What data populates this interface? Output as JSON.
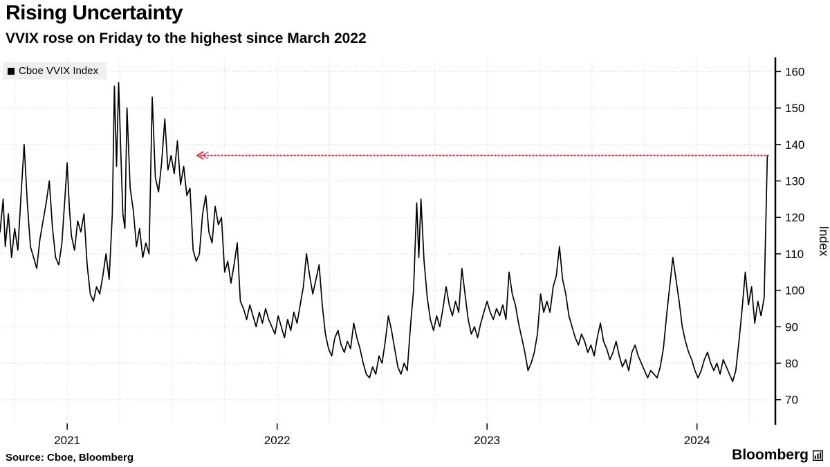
{
  "chart_data": {
    "type": "line",
    "title": "Rising Uncertainty",
    "subtitle": "VVIX rose on Friday to the highest since March 2022",
    "ylabel": "Index",
    "xlabel": "",
    "xlim": [
      2020.68,
      2024.37
    ],
    "ylim": [
      63.5,
      163.5
    ],
    "y_ticks": [
      70,
      80,
      90,
      100,
      110,
      120,
      130,
      140,
      150,
      160
    ],
    "x_ticks": [
      {
        "value": 2021,
        "label": "2021"
      },
      {
        "value": 2022,
        "label": "2022"
      },
      {
        "value": 2023,
        "label": "2023"
      },
      {
        "value": 2024,
        "label": "2024"
      }
    ],
    "grid": "dotted, horizontal every 10, vertical quarterly",
    "legend_position": "top-left",
    "annotation": {
      "type": "dotted-horizontal-arrow-line",
      "value": 137,
      "x_start": 2021.62,
      "x_end": 2024.34,
      "color": "#dd2e3f"
    },
    "series": [
      {
        "name": "Cboe VVIX Index",
        "color": "#000000",
        "points": [
          [
            2020.68,
            116
          ],
          [
            2020.695,
            125
          ],
          [
            2020.705,
            112
          ],
          [
            2020.72,
            121
          ],
          [
            2020.735,
            109
          ],
          [
            2020.75,
            117
          ],
          [
            2020.765,
            111
          ],
          [
            2020.78,
            126
          ],
          [
            2020.795,
            140
          ],
          [
            2020.81,
            124
          ],
          [
            2020.825,
            112
          ],
          [
            2020.84,
            109
          ],
          [
            2020.855,
            106
          ],
          [
            2020.87,
            114
          ],
          [
            2020.885,
            119
          ],
          [
            2020.9,
            124
          ],
          [
            2020.915,
            130
          ],
          [
            2020.93,
            117
          ],
          [
            2020.945,
            109
          ],
          [
            2020.96,
            107
          ],
          [
            2020.975,
            113
          ],
          [
            2020.99,
            126
          ],
          [
            2021.0,
            135
          ],
          [
            2021.01,
            123
          ],
          [
            2021.02,
            115
          ],
          [
            2021.035,
            111
          ],
          [
            2021.05,
            119
          ],
          [
            2021.065,
            116
          ],
          [
            2021.08,
            121
          ],
          [
            2021.095,
            107
          ],
          [
            2021.11,
            99
          ],
          [
            2021.125,
            97
          ],
          [
            2021.14,
            101
          ],
          [
            2021.155,
            99
          ],
          [
            2021.17,
            104
          ],
          [
            2021.185,
            110
          ],
          [
            2021.2,
            103
          ],
          [
            2021.215,
            121
          ],
          [
            2021.225,
            156
          ],
          [
            2021.235,
            134
          ],
          [
            2021.245,
            157
          ],
          [
            2021.255,
            139
          ],
          [
            2021.265,
            121
          ],
          [
            2021.275,
            117
          ],
          [
            2021.285,
            150
          ],
          [
            2021.3,
            128
          ],
          [
            2021.315,
            122
          ],
          [
            2021.33,
            112
          ],
          [
            2021.345,
            117
          ],
          [
            2021.36,
            109
          ],
          [
            2021.375,
            113
          ],
          [
            2021.39,
            110
          ],
          [
            2021.405,
            153
          ],
          [
            2021.42,
            131
          ],
          [
            2021.435,
            127
          ],
          [
            2021.45,
            135
          ],
          [
            2021.465,
            147
          ],
          [
            2021.48,
            133
          ],
          [
            2021.495,
            137
          ],
          [
            2021.51,
            132
          ],
          [
            2021.525,
            141
          ],
          [
            2021.54,
            129
          ],
          [
            2021.555,
            134
          ],
          [
            2021.57,
            126
          ],
          [
            2021.585,
            128
          ],
          [
            2021.6,
            111
          ],
          [
            2021.615,
            108
          ],
          [
            2021.63,
            110
          ],
          [
            2021.645,
            121
          ],
          [
            2021.66,
            126
          ],
          [
            2021.675,
            116
          ],
          [
            2021.69,
            113
          ],
          [
            2021.705,
            123
          ],
          [
            2021.72,
            118
          ],
          [
            2021.735,
            120
          ],
          [
            2021.75,
            105
          ],
          [
            2021.765,
            108
          ],
          [
            2021.78,
            102
          ],
          [
            2021.795,
            107
          ],
          [
            2021.81,
            113
          ],
          [
            2021.825,
            97
          ],
          [
            2021.84,
            95
          ],
          [
            2021.855,
            92
          ],
          [
            2021.87,
            96
          ],
          [
            2021.885,
            93
          ],
          [
            2021.9,
            90
          ],
          [
            2021.915,
            94
          ],
          [
            2021.93,
            91
          ],
          [
            2021.945,
            95
          ],
          [
            2021.96,
            92
          ],
          [
            2021.975,
            90
          ],
          [
            2021.99,
            88
          ],
          [
            2022.005,
            93
          ],
          [
            2022.02,
            90
          ],
          [
            2022.035,
            87
          ],
          [
            2022.05,
            92
          ],
          [
            2022.065,
            89
          ],
          [
            2022.08,
            94
          ],
          [
            2022.095,
            91
          ],
          [
            2022.11,
            96
          ],
          [
            2022.125,
            101
          ],
          [
            2022.14,
            110
          ],
          [
            2022.155,
            104
          ],
          [
            2022.17,
            99
          ],
          [
            2022.185,
            103
          ],
          [
            2022.2,
            107
          ],
          [
            2022.215,
            96
          ],
          [
            2022.23,
            88
          ],
          [
            2022.245,
            84
          ],
          [
            2022.26,
            82
          ],
          [
            2022.275,
            87
          ],
          [
            2022.29,
            89
          ],
          [
            2022.305,
            85
          ],
          [
            2022.32,
            83
          ],
          [
            2022.335,
            86
          ],
          [
            2022.35,
            84
          ],
          [
            2022.365,
            91
          ],
          [
            2022.38,
            87
          ],
          [
            2022.395,
            84
          ],
          [
            2022.41,
            80
          ],
          [
            2022.425,
            77
          ],
          [
            2022.44,
            76
          ],
          [
            2022.455,
            79
          ],
          [
            2022.47,
            77
          ],
          [
            2022.485,
            82
          ],
          [
            2022.5,
            80
          ],
          [
            2022.515,
            86
          ],
          [
            2022.53,
            93
          ],
          [
            2022.545,
            89
          ],
          [
            2022.56,
            84
          ],
          [
            2022.575,
            79
          ],
          [
            2022.59,
            77
          ],
          [
            2022.605,
            80
          ],
          [
            2022.62,
            78
          ],
          [
            2022.635,
            90
          ],
          [
            2022.65,
            100
          ],
          [
            2022.665,
            124
          ],
          [
            2022.675,
            109
          ],
          [
            2022.685,
            125
          ],
          [
            2022.7,
            108
          ],
          [
            2022.715,
            98
          ],
          [
            2022.73,
            92
          ],
          [
            2022.745,
            89
          ],
          [
            2022.76,
            93
          ],
          [
            2022.775,
            90
          ],
          [
            2022.79,
            95
          ],
          [
            2022.805,
            101
          ],
          [
            2022.82,
            96
          ],
          [
            2022.835,
            93
          ],
          [
            2022.85,
            97
          ],
          [
            2022.865,
            94
          ],
          [
            2022.88,
            106
          ],
          [
            2022.895,
            99
          ],
          [
            2022.91,
            92
          ],
          [
            2022.925,
            88
          ],
          [
            2022.94,
            90
          ],
          [
            2022.955,
            87
          ],
          [
            2022.97,
            91
          ],
          [
            2022.985,
            94
          ],
          [
            2023.0,
            97
          ],
          [
            2023.015,
            94
          ],
          [
            2023.03,
            92
          ],
          [
            2023.045,
            95
          ],
          [
            2023.06,
            93
          ],
          [
            2023.075,
            96
          ],
          [
            2023.09,
            92
          ],
          [
            2023.105,
            105
          ],
          [
            2023.12,
            99
          ],
          [
            2023.135,
            96
          ],
          [
            2023.15,
            91
          ],
          [
            2023.165,
            87
          ],
          [
            2023.18,
            83
          ],
          [
            2023.195,
            78
          ],
          [
            2023.21,
            80
          ],
          [
            2023.225,
            83
          ],
          [
            2023.24,
            88
          ],
          [
            2023.255,
            99
          ],
          [
            2023.27,
            94
          ],
          [
            2023.285,
            97
          ],
          [
            2023.3,
            94
          ],
          [
            2023.315,
            101
          ],
          [
            2023.33,
            104
          ],
          [
            2023.345,
            112
          ],
          [
            2023.36,
            103
          ],
          [
            2023.375,
            99
          ],
          [
            2023.39,
            93
          ],
          [
            2023.405,
            90
          ],
          [
            2023.42,
            87
          ],
          [
            2023.435,
            85
          ],
          [
            2023.45,
            88
          ],
          [
            2023.465,
            86
          ],
          [
            2023.48,
            83
          ],
          [
            2023.495,
            85
          ],
          [
            2023.51,
            82
          ],
          [
            2023.525,
            87
          ],
          [
            2023.54,
            91
          ],
          [
            2023.555,
            86
          ],
          [
            2023.57,
            84
          ],
          [
            2023.585,
            81
          ],
          [
            2023.6,
            83
          ],
          [
            2023.615,
            86
          ],
          [
            2023.63,
            82
          ],
          [
            2023.645,
            79
          ],
          [
            2023.66,
            81
          ],
          [
            2023.675,
            78
          ],
          [
            2023.69,
            83
          ],
          [
            2023.705,
            85
          ],
          [
            2023.72,
            82
          ],
          [
            2023.735,
            80
          ],
          [
            2023.75,
            78
          ],
          [
            2023.765,
            76
          ],
          [
            2023.78,
            78
          ],
          [
            2023.795,
            77
          ],
          [
            2023.81,
            76
          ],
          [
            2023.825,
            79
          ],
          [
            2023.84,
            84
          ],
          [
            2023.855,
            93
          ],
          [
            2023.87,
            101
          ],
          [
            2023.885,
            109
          ],
          [
            2023.9,
            103
          ],
          [
            2023.915,
            97
          ],
          [
            2023.93,
            90
          ],
          [
            2023.945,
            86
          ],
          [
            2023.96,
            83
          ],
          [
            2023.975,
            81
          ],
          [
            2023.99,
            78
          ],
          [
            2024.005,
            76
          ],
          [
            2024.02,
            78
          ],
          [
            2024.035,
            81
          ],
          [
            2024.05,
            83
          ],
          [
            2024.065,
            80
          ],
          [
            2024.08,
            78
          ],
          [
            2024.095,
            80
          ],
          [
            2024.11,
            77
          ],
          [
            2024.125,
            81
          ],
          [
            2024.14,
            79
          ],
          [
            2024.155,
            77
          ],
          [
            2024.17,
            75
          ],
          [
            2024.185,
            78
          ],
          [
            2024.2,
            86
          ],
          [
            2024.215,
            95
          ],
          [
            2024.23,
            105
          ],
          [
            2024.245,
            96
          ],
          [
            2024.26,
            101
          ],
          [
            2024.275,
            91
          ],
          [
            2024.29,
            97
          ],
          [
            2024.305,
            93
          ],
          [
            2024.32,
            98
          ],
          [
            2024.335,
            137
          ]
        ]
      }
    ]
  },
  "footer": {
    "source": "Source: Cboe, Bloomberg",
    "brand": "Bloomberg"
  },
  "colors": {
    "series_line": "#000000",
    "annotation_red": "#dd2e3f",
    "grid": "#cbcbcb",
    "legend_background": "#efefef"
  }
}
